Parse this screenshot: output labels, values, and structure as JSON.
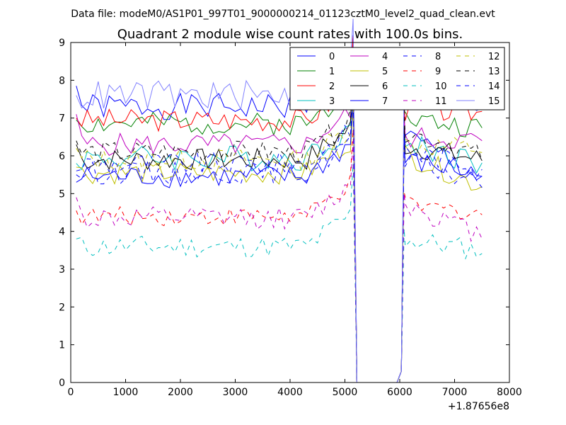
{
  "header": {
    "data_file": "Data file: modeM0/AS1P01_997T01_9000000214_01123cztM0_level2_quad_clean.evt"
  },
  "chart_data": {
    "type": "line",
    "title": "Quadrant 2 module wise count rates with 100.0s bins.",
    "xlabel": "",
    "ylabel": "",
    "x_offset_label": "+1.87656e8",
    "xlim": [
      0,
      8000
    ],
    "ylim": [
      0,
      9
    ],
    "x_ticks": [
      0,
      1000,
      2000,
      3000,
      4000,
      5000,
      6000,
      7000,
      8000
    ],
    "y_ticks": [
      0,
      1,
      2,
      3,
      4,
      5,
      6,
      7,
      8,
      9
    ],
    "x": [
      100,
      200,
      300,
      400,
      500,
      600,
      700,
      800,
      900,
      1000,
      1100,
      1200,
      1300,
      1400,
      1500,
      1600,
      1700,
      1800,
      1900,
      2000,
      2100,
      2200,
      2300,
      2400,
      2500,
      2600,
      2700,
      2800,
      2900,
      3000,
      3100,
      3200,
      3300,
      3400,
      3500,
      3600,
      3700,
      3800,
      3900,
      4000,
      4100,
      4200,
      4300,
      4400,
      4500,
      4600,
      4700,
      4800,
      4900,
      5000,
      5100,
      5200,
      5300,
      5400,
      5500,
      5600,
      5700,
      5800,
      5900,
      6000,
      6100,
      6200,
      6300,
      6400,
      6500,
      6600,
      6700,
      6800,
      6900,
      7000,
      7100,
      7200,
      7300,
      7400,
      7500
    ],
    "gap": {
      "drop_start": 5150,
      "zero_from": 5220,
      "zero_to": 5950,
      "rise_end": 6080
    },
    "legend_position": "top-right",
    "series": [
      {
        "name": "0",
        "color": "#0000ff",
        "dash": false,
        "base": 7.3,
        "amp": 0.35,
        "seed": 1,
        "start": 7.85,
        "late": 6.6,
        "end": 5.4
      },
      {
        "name": "1",
        "color": "#008000",
        "dash": false,
        "base": 6.85,
        "amp": 0.3,
        "seed": 2,
        "start": 6.95,
        "late": 7.0,
        "end": 6.7
      },
      {
        "name": "2",
        "color": "#ff0000",
        "dash": false,
        "base": 6.95,
        "amp": 0.3,
        "seed": 3,
        "start": 7.0,
        "late": 7.2,
        "end": 7.15
      },
      {
        "name": "3",
        "color": "#00bfbf",
        "dash": false,
        "base": 5.95,
        "amp": 0.35,
        "seed": 4,
        "start": 5.8,
        "late": 6.4,
        "end": 5.8
      },
      {
        "name": "4",
        "color": "#bf00bf",
        "dash": false,
        "base": 6.3,
        "amp": 0.3,
        "seed": 5,
        "start": 7.1,
        "late": 6.5,
        "end": 6.4
      },
      {
        "name": "5",
        "color": "#bfbf00",
        "dash": false,
        "base": 5.55,
        "amp": 0.3,
        "seed": 6,
        "start": 5.7,
        "late": 6.1,
        "end": 5.2
      },
      {
        "name": "6",
        "color": "#000000",
        "dash": false,
        "base": 5.9,
        "amp": 0.3,
        "seed": 7,
        "start": 6.3,
        "late": 6.3,
        "end": 5.9
      },
      {
        "name": "7",
        "color": "#0000ff",
        "dash": false,
        "base": 5.45,
        "amp": 0.3,
        "seed": 8,
        "start": 5.3,
        "late": 5.9,
        "end": 5.5
      },
      {
        "name": "8",
        "color": "#0000ff",
        "dash": true,
        "base": 5.8,
        "amp": 0.3,
        "seed": 9,
        "start": 5.6,
        "late": 6.2,
        "end": 5.7
      },
      {
        "name": "9",
        "color": "#ff0000",
        "dash": true,
        "base": 4.4,
        "amp": 0.25,
        "seed": 10,
        "start": 4.55,
        "late": 4.7,
        "end": 4.5
      },
      {
        "name": "10",
        "color": "#00bfbf",
        "dash": true,
        "base": 3.6,
        "amp": 0.3,
        "seed": 11,
        "start": 3.8,
        "late": 3.8,
        "end": 3.5
      },
      {
        "name": "11",
        "color": "#bf00bf",
        "dash": true,
        "base": 4.35,
        "amp": 0.3,
        "seed": 12,
        "start": 4.9,
        "late": 4.8,
        "end": 3.9
      },
      {
        "name": "12",
        "color": "#bfbf00",
        "dash": true,
        "base": 5.9,
        "amp": 0.3,
        "seed": 13,
        "start": 6.2,
        "late": 6.3,
        "end": 6.2
      },
      {
        "name": "13",
        "color": "#000000",
        "dash": true,
        "base": 6.1,
        "amp": 0.3,
        "seed": 14,
        "start": 6.4,
        "late": 6.7,
        "end": 6.0
      },
      {
        "name": "14",
        "color": "#0000ff",
        "dash": true,
        "base": 5.55,
        "amp": 0.3,
        "seed": 15,
        "start": 5.5,
        "late": 5.9,
        "end": 5.3
      },
      {
        "name": "15",
        "color": "#8080ff",
        "dash": false,
        "base": 7.6,
        "amp": 0.4,
        "seed": 16,
        "start": 7.6,
        "late": 7.6,
        "end": 7.5
      }
    ]
  }
}
